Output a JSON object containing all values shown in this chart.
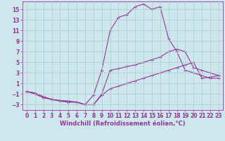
{
  "background_color": "#cce8ec",
  "grid_color": "#aacccc",
  "line_color": "#993399",
  "xlabel": "Windchill (Refroidissement éolien,°C)",
  "xlabel_fontsize": 6.0,
  "tick_fontsize": 5.5,
  "xlim": [
    -0.5,
    23.5
  ],
  "ylim": [
    -4.0,
    16.5
  ],
  "yticks": [
    -3,
    -1,
    1,
    3,
    5,
    7,
    9,
    11,
    13,
    15
  ],
  "xticks": [
    0,
    1,
    2,
    3,
    4,
    5,
    6,
    7,
    8,
    9,
    10,
    11,
    12,
    13,
    14,
    15,
    16,
    17,
    18,
    19,
    20,
    21,
    22,
    23
  ],
  "line1_x": [
    0,
    1,
    2,
    3,
    4,
    5,
    6,
    7,
    8,
    9,
    10,
    11,
    12,
    13,
    14,
    15,
    16,
    17,
    18,
    19,
    20,
    21,
    22,
    23
  ],
  "line1_y": [
    -0.5,
    -1.0,
    -1.7,
    -2.0,
    -2.2,
    -2.3,
    -2.5,
    -3.0,
    -1.2,
    3.5,
    11.0,
    13.5,
    14.0,
    15.5,
    16.0,
    15.0,
    15.5,
    9.5,
    7.0,
    3.5,
    3.0,
    2.5,
    2.0,
    2.0
  ],
  "line2_x": [
    0,
    1,
    2,
    3,
    4,
    5,
    6,
    7,
    8,
    9,
    10,
    11,
    12,
    13,
    14,
    15,
    16,
    17,
    18,
    19,
    20,
    21,
    22,
    23
  ],
  "line2_y": [
    -0.5,
    -0.8,
    -1.5,
    -2.0,
    -2.3,
    -2.5,
    -2.5,
    -3.0,
    -3.0,
    -1.0,
    3.5,
    3.8,
    4.2,
    4.5,
    5.0,
    5.5,
    6.0,
    7.0,
    7.5,
    7.0,
    4.0,
    3.5,
    3.0,
    2.5
  ],
  "line3_x": [
    0,
    1,
    2,
    3,
    4,
    5,
    6,
    7,
    8,
    9,
    10,
    11,
    12,
    13,
    14,
    15,
    16,
    17,
    18,
    19,
    20,
    21,
    22,
    23
  ],
  "line3_y": [
    -0.5,
    -0.8,
    -1.5,
    -2.0,
    -2.3,
    -2.5,
    -2.5,
    -3.0,
    -3.0,
    -1.2,
    0.0,
    0.5,
    1.0,
    1.5,
    2.0,
    2.5,
    3.0,
    3.5,
    4.0,
    4.5,
    5.0,
    2.0,
    2.2,
    2.5
  ]
}
